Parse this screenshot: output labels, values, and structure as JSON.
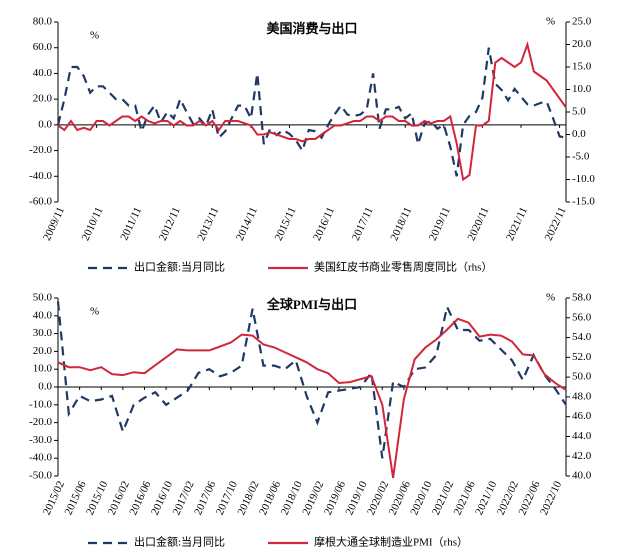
{
  "chart_data": [
    {
      "type": "line",
      "title": "美国消费与出口",
      "y_label": "%",
      "y2_label": "%",
      "categories": [
        "2009/11",
        null,
        null,
        null,
        null,
        null,
        "2010/11",
        null,
        null,
        null,
        null,
        null,
        "2011/11",
        null,
        null,
        null,
        null,
        null,
        "2012/11",
        null,
        null,
        null,
        null,
        null,
        "2013/11",
        null,
        null,
        null,
        null,
        null,
        "2014/11",
        null,
        null,
        null,
        null,
        null,
        "2015/11",
        null,
        null,
        null,
        null,
        null,
        "2016/11",
        null,
        null,
        null,
        null,
        null,
        "2017/11",
        null,
        null,
        null,
        null,
        null,
        "2018/11",
        null,
        null,
        null,
        null,
        null,
        "2019/11",
        null,
        null,
        null,
        null,
        null,
        "2020/11",
        null,
        null,
        null,
        null,
        null,
        "2021/11",
        null,
        null,
        null,
        null,
        null,
        "2022/11",
        null
      ],
      "series": [
        {
          "name": "出口金额:当月同比",
          "color": "#1f3864",
          "dashed": true,
          "values": [
            0,
            20,
            45,
            45,
            38,
            25,
            30,
            30,
            25,
            20,
            20,
            15,
            15,
            -5,
            8,
            15,
            2,
            10,
            5,
            20,
            10,
            1,
            5,
            -1,
            12,
            -10,
            -5,
            5,
            15,
            15,
            5,
            40,
            -15,
            -3,
            -8,
            -4,
            -7,
            -12,
            -20,
            -4,
            -5,
            -10,
            0,
            8,
            15,
            8,
            7,
            8,
            12,
            40,
            -3,
            12,
            12,
            14,
            5,
            9,
            -15,
            1,
            3,
            -3,
            0,
            -17,
            -40,
            0,
            7,
            10,
            21,
            60,
            32,
            27,
            19,
            28,
            22,
            16,
            15,
            17,
            18,
            5,
            -9,
            -10
          ]
        },
        {
          "name": "美国红皮书商业零售周度同比（rhs）",
          "color": "#d1273a",
          "axis": "y2",
          "values": [
            2,
            1,
            3,
            1,
            1.5,
            1,
            3,
            3,
            2,
            3,
            4,
            4,
            3,
            4,
            3,
            2.5,
            3,
            3,
            2,
            3,
            2,
            2,
            3,
            2,
            3,
            1,
            3,
            3,
            3,
            2.5,
            2,
            0,
            0,
            0.5,
            0,
            -0.5,
            -1,
            -1,
            -1.5,
            -1,
            -1,
            0,
            1,
            2,
            2,
            2.5,
            3,
            3,
            4,
            4,
            3,
            4,
            4,
            3,
            3,
            2,
            2,
            3,
            2.5,
            3,
            3,
            4,
            -2,
            -10,
            -9,
            2,
            2,
            3,
            16,
            17,
            16,
            15,
            16,
            20,
            14,
            13,
            12,
            10,
            8,
            6
          ]
        }
      ],
      "ylim": [
        -60,
        80
      ],
      "yticks": [
        {
          "value": -60,
          "label": "-60.0"
        },
        {
          "value": -40,
          "label": "-40.0"
        },
        {
          "value": -20,
          "label": "-20.0"
        },
        {
          "value": 0,
          "label": "0.0"
        },
        {
          "value": 20,
          "label": "20.0"
        },
        {
          "value": 40,
          "label": "40.0"
        },
        {
          "value": 60,
          "label": "60.0"
        },
        {
          "value": 80,
          "label": "80.0"
        }
      ],
      "y2lim": [
        -15,
        25
      ],
      "y2ticks": [
        {
          "value": -15,
          "label": "-15.0"
        },
        {
          "value": -10,
          "label": "-10.0"
        },
        {
          "value": -5,
          "label": "-5.0"
        },
        {
          "value": 0,
          "label": "0.0"
        },
        {
          "value": 5,
          "label": "5.0"
        },
        {
          "value": 10,
          "label": "10.0"
        },
        {
          "value": 15,
          "label": "15.0"
        },
        {
          "value": 20,
          "label": "20.0"
        },
        {
          "value": 25,
          "label": "25.0"
        }
      ]
    },
    {
      "type": "line",
      "title": "全球PMI与出口",
      "y_label": "%",
      "y2_label": "%",
      "categories": [
        "2015/02",
        null,
        "2015/06",
        null,
        "2015/10",
        null,
        "2016/02",
        null,
        "2016/06",
        null,
        "2016/10",
        null,
        "2017/02",
        null,
        "2017/06",
        null,
        "2017/10",
        null,
        "2018/02",
        null,
        "2018/06",
        null,
        "2018/10",
        null,
        "2019/02",
        null,
        "2019/06",
        null,
        "2019/10",
        null,
        "2020/02",
        null,
        "2020/06",
        null,
        "2020/10",
        null,
        "2021/02",
        null,
        "2021/06",
        null,
        "2021/10",
        null,
        "2022/02",
        null,
        "2022/06",
        null,
        "2022/10",
        null
      ],
      "series": [
        {
          "name": "出口金额:当月同比",
          "color": "#1f3864",
          "dashed": true,
          "values": [
            48,
            -15,
            -5,
            -8,
            -7,
            -5,
            -25,
            -10,
            -6,
            -3,
            -10,
            -6,
            -2,
            8,
            10,
            6,
            8,
            12,
            44,
            12,
            12,
            10,
            15,
            -5,
            -20,
            -3,
            -2,
            -1,
            0,
            8,
            -40,
            3,
            0,
            10,
            11,
            18,
            45,
            32,
            32,
            26,
            27,
            21,
            15,
            4,
            18,
            7,
            -1,
            -10
          ]
        },
        {
          "name": "摩根大通全球制造业PMI（rhs）",
          "color": "#d1273a",
          "axis": "y2",
          "values": [
            51.5,
            51,
            51,
            50.7,
            51,
            50.3,
            50.2,
            50.5,
            50.4,
            51.2,
            52,
            52.8,
            52.7,
            52.7,
            52.7,
            53.1,
            53.5,
            54.3,
            54.2,
            53.3,
            53,
            52.5,
            52,
            51.5,
            50.8,
            50.4,
            49.4,
            49.5,
            49.8,
            50.1,
            47.2,
            39.8,
            47.8,
            51.8,
            53,
            53.8,
            54.8,
            55.9,
            55.5,
            54.1,
            54.3,
            54.2,
            53.6,
            52.3,
            52.2,
            50.3,
            49.4,
            48.7
          ]
        }
      ],
      "ylim": [
        -50,
        50
      ],
      "yticks": [
        {
          "value": -50,
          "label": "-50.0"
        },
        {
          "value": -40,
          "label": "-40.0"
        },
        {
          "value": -30,
          "label": "-30.0"
        },
        {
          "value": -20,
          "label": "-20.0"
        },
        {
          "value": -10,
          "label": "-10.0"
        },
        {
          "value": 0,
          "label": "0.0"
        },
        {
          "value": 10,
          "label": "10.0"
        },
        {
          "value": 20,
          "label": "20.0"
        },
        {
          "value": 30,
          "label": "30.0"
        },
        {
          "value": 40,
          "label": "40.0"
        },
        {
          "value": 50,
          "label": "50.0"
        }
      ],
      "y2lim": [
        40,
        58
      ],
      "y2ticks": [
        {
          "value": 40,
          "label": "40.0"
        },
        {
          "value": 42,
          "label": "42.0"
        },
        {
          "value": 44,
          "label": "44.0"
        },
        {
          "value": 46,
          "label": "46.0"
        },
        {
          "value": 48,
          "label": "48.0"
        },
        {
          "value": 50,
          "label": "50.0"
        },
        {
          "value": 52,
          "label": "52.0"
        },
        {
          "value": 54,
          "label": "54.0"
        },
        {
          "value": 56,
          "label": "56.0"
        },
        {
          "value": 58,
          "label": "58.0"
        }
      ]
    }
  ]
}
